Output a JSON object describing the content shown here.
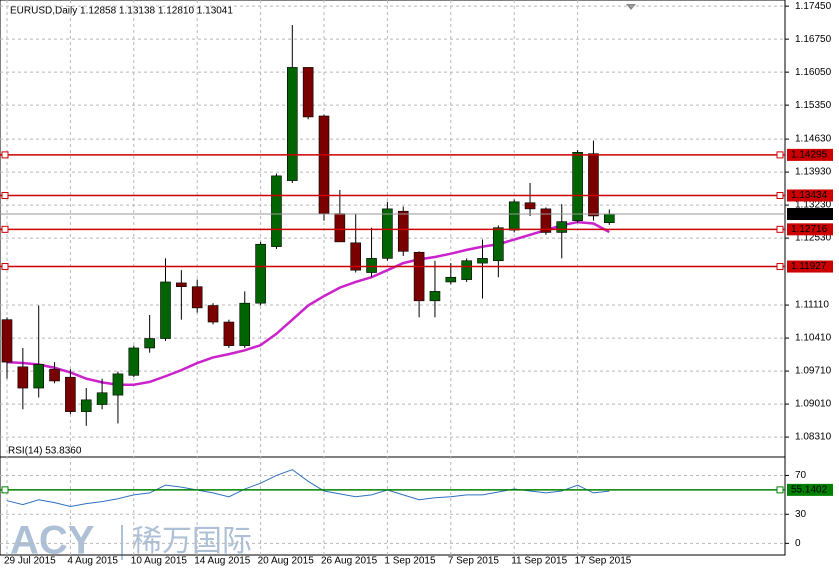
{
  "chart_data": [
    {
      "type": "candlestick",
      "title": "EURUSD,Daily  1.12858 1.13138 1.12810 1.13041",
      "categories": [
        "29 Jul 2015",
        null,
        null,
        null,
        "4 Aug 2015",
        null,
        null,
        null,
        "10 Aug 2015",
        null,
        null,
        null,
        "14 Aug 2015",
        null,
        null,
        null,
        "20 Aug 2015",
        null,
        null,
        null,
        "26 Aug 2015",
        null,
        null,
        null,
        "1 Sep 2015",
        null,
        null,
        null,
        "7 Sep 2015",
        null,
        null,
        null,
        "11 Sep 2015",
        null,
        null,
        null,
        "17 Sep 2015",
        null,
        null
      ],
      "open": [
        1.108,
        1.098,
        1.0935,
        1.0975,
        1.0958,
        1.0885,
        1.09,
        1.092,
        1.0962,
        1.102,
        1.104,
        1.1158,
        1.115,
        1.111,
        1.1075,
        1.1025,
        1.1115,
        1.1235,
        1.1375,
        1.1615,
        1.1512,
        1.1305,
        1.1243,
        1.118,
        1.121,
        1.131,
        1.1223,
        1.112,
        1.116,
        1.1165,
        1.12,
        1.1205,
        1.127,
        1.1328,
        1.1315,
        1.1265,
        1.129,
        1.1432,
        1.12858
      ],
      "high": [
        1.1085,
        1.102,
        1.111,
        1.099,
        1.0975,
        1.0935,
        1.0955,
        1.097,
        1.1025,
        1.109,
        1.121,
        1.1185,
        1.1165,
        1.1115,
        1.108,
        1.114,
        1.1245,
        1.139,
        1.1705,
        1.1615,
        1.1515,
        1.1355,
        1.1305,
        1.1275,
        1.133,
        1.132,
        1.1225,
        1.1205,
        1.12,
        1.121,
        1.125,
        1.128,
        1.1335,
        1.137,
        1.1318,
        1.1325,
        1.144,
        1.146,
        1.13138
      ],
      "low": [
        1.0955,
        1.089,
        1.0915,
        1.0945,
        1.088,
        1.0855,
        1.089,
        1.086,
        1.0958,
        1.101,
        1.1035,
        1.108,
        1.1095,
        1.107,
        1.102,
        1.102,
        1.111,
        1.123,
        1.137,
        1.1505,
        1.129,
        1.1245,
        1.118,
        1.117,
        1.1205,
        1.1215,
        1.1085,
        1.1085,
        1.1155,
        1.116,
        1.1125,
        1.117,
        1.1265,
        1.13,
        1.126,
        1.121,
        1.1285,
        1.129,
        1.1281
      ],
      "close": [
        1.099,
        1.0935,
        1.0985,
        1.095,
        1.0885,
        1.091,
        1.0925,
        1.0965,
        1.102,
        1.104,
        1.116,
        1.115,
        1.1105,
        1.1075,
        1.1025,
        1.1115,
        1.124,
        1.1385,
        1.1615,
        1.151,
        1.1305,
        1.1245,
        1.1185,
        1.121,
        1.1315,
        1.1225,
        1.112,
        1.114,
        1.117,
        1.1205,
        1.121,
        1.1275,
        1.133,
        1.1315,
        1.1265,
        1.1288,
        1.1435,
        1.13,
        1.13041
      ],
      "up_color": "#006400",
      "down_color": "#7a0000",
      "ma": {
        "color": "#cc22cc",
        "values": [
          1.099,
          1.0988,
          1.0985,
          1.0978,
          1.0968,
          1.0955,
          1.0947,
          1.0942,
          1.0942,
          1.0948,
          1.096,
          1.0973,
          1.0988,
          1.1,
          1.1007,
          1.1015,
          1.1026,
          1.105,
          1.108,
          1.111,
          1.113,
          1.1148,
          1.116,
          1.117,
          1.1185,
          1.12,
          1.1208,
          1.1213,
          1.122,
          1.1228,
          1.1235,
          1.124,
          1.125,
          1.126,
          1.127,
          1.128,
          1.1287,
          1.1284,
          1.1266
        ]
      },
      "levels": [
        1.14295,
        1.13434,
        1.12716,
        1.11927
      ],
      "level_color": "#cc0000",
      "current_price": 1.13041,
      "ylim": [
        1.0793,
        1.1758
      ],
      "yticks": [
        {
          "value": 1.1745,
          "label": "1.17450"
        },
        {
          "value": 1.1675,
          "label": "1.16750"
        },
        {
          "value": 1.1605,
          "label": "1.16050"
        },
        {
          "value": 1.1535,
          "label": "1.15350"
        },
        {
          "value": 1.1463,
          "label": "1.14630"
        },
        {
          "value": 1.1393,
          "label": "1.13930"
        },
        {
          "value": 1.1323,
          "label": "1.13230"
        },
        {
          "value": 1.1253,
          "label": "1.12530"
        },
        {
          "value": 1.1111,
          "label": "1.11110"
        },
        {
          "value": 1.1041,
          "label": "1.10410"
        },
        {
          "value": 1.0971,
          "label": "1.09710"
        },
        {
          "value": 1.0901,
          "label": "1.09010"
        },
        {
          "value": 1.0831,
          "label": "1.08310"
        }
      ],
      "grid": true
    },
    {
      "type": "line",
      "title": "RSI(14) 53.8360",
      "color": "#3070c0",
      "values": [
        44,
        40,
        45,
        42,
        38,
        41,
        43,
        46,
        50,
        52,
        60,
        58,
        55,
        52,
        48,
        56,
        62,
        70,
        76,
        64,
        54,
        51,
        48,
        50,
        55,
        50,
        45,
        47,
        48,
        50,
        50,
        53,
        56,
        54,
        52,
        54,
        60,
        52,
        53.836
      ],
      "levels": [
        55.1402
      ],
      "level_color": "#008000",
      "ylim": [
        -12,
        88
      ],
      "yticks": [
        0,
        30,
        70
      ],
      "grid": true
    }
  ],
  "watermark": {
    "brand": "ACY",
    "name": "稀万国际"
  }
}
